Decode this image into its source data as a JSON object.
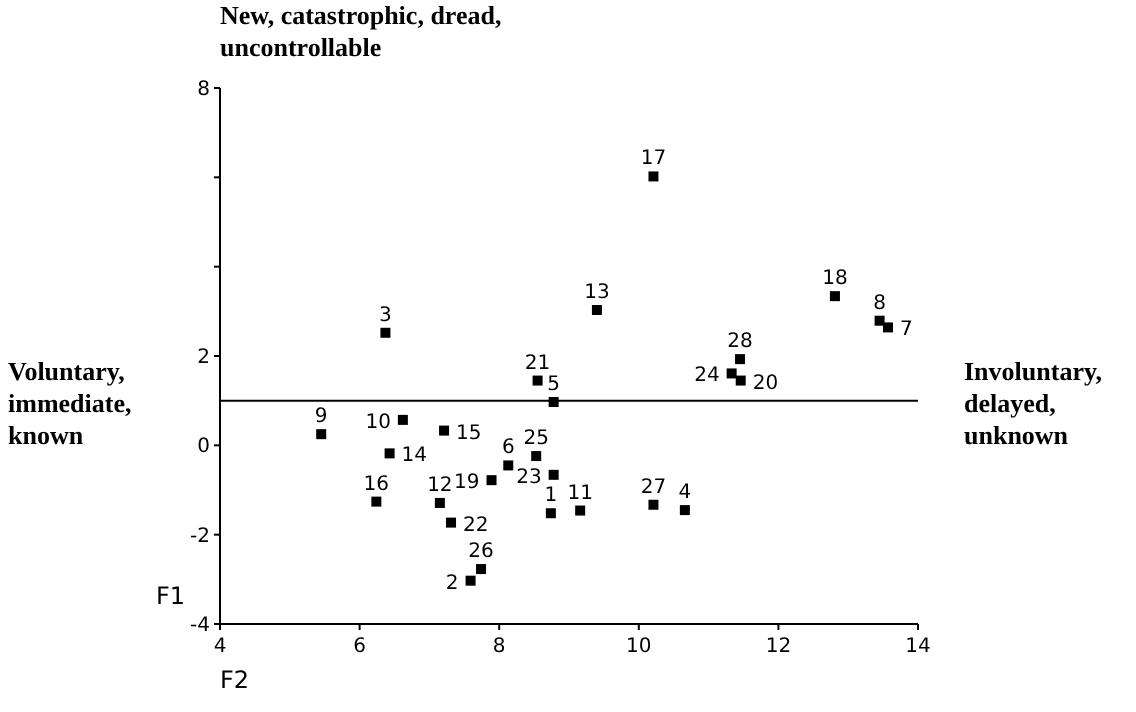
{
  "chart_data": {
    "type": "scatter",
    "xlabel": "F2",
    "ylabel": "F1",
    "x": [
      8.74,
      7.59,
      6.37,
      10.66,
      8.78,
      8.13,
      13.57,
      13.45,
      5.45,
      6.62,
      9.16,
      7.15,
      9.4,
      6.43,
      7.21,
      6.24,
      10.21,
      12.81,
      7.89,
      11.46,
      8.55,
      7.31,
      8.78,
      11.33,
      8.53,
      7.74,
      10.21,
      11.45
    ],
    "series": [
      {
        "color": "#000000",
        "values": [
          -1.52,
          -3.03,
          2.52,
          -1.45,
          0.97,
          -0.45,
          2.64,
          2.79,
          0.25,
          0.57,
          -1.46,
          -1.29,
          3.03,
          -0.18,
          0.33,
          -1.26,
          6.02,
          3.34,
          -0.78,
          1.45,
          1.45,
          -1.73,
          -0.66,
          1.61,
          -0.24,
          -2.77,
          -1.33,
          1.93
        ]
      }
    ],
    "marker": "square",
    "grid": false,
    "xlim": [
      4,
      14
    ],
    "xticks": [
      4,
      6,
      8,
      10,
      12,
      14
    ],
    "ylim": [
      -4,
      8
    ],
    "yticks": [
      -4,
      -2,
      0,
      2,
      {
        "value": 4,
        "label": null
      },
      {
        "value": 6,
        "label": null
      },
      8
    ],
    "ref_lines": [
      {
        "axis": "y",
        "value": 1,
        "color": "#000000",
        "line_style": "solid"
      }
    ],
    "annotations": [
      "New, catastrophic, dread, uncontrollable",
      "Voluntary, immediate, known",
      "Involuntary, delayed, unknown",
      {
        "text": "1",
        "x": 8.74,
        "y": -1.52
      },
      {
        "text": "2",
        "x": 7.59,
        "y": -3.03
      },
      {
        "text": "3",
        "x": 6.37,
        "y": 2.52
      },
      {
        "text": "4",
        "x": 10.66,
        "y": -1.45
      },
      {
        "text": "5",
        "x": 8.78,
        "y": 0.97
      },
      {
        "text": "6",
        "x": 8.13,
        "y": -0.45
      },
      {
        "text": "7",
        "x": 13.57,
        "y": 2.64
      },
      {
        "text": "8",
        "x": 13.45,
        "y": 2.79
      },
      {
        "text": "9",
        "x": 5.45,
        "y": 0.25
      },
      {
        "text": "10",
        "x": 6.62,
        "y": 0.57
      },
      {
        "text": "11",
        "x": 9.16,
        "y": -1.46
      },
      {
        "text": "12",
        "x": 7.15,
        "y": -1.29
      },
      {
        "text": "13",
        "x": 9.4,
        "y": 3.03
      },
      {
        "text": "14",
        "x": 6.43,
        "y": -0.18
      },
      {
        "text": "15",
        "x": 7.21,
        "y": 0.33
      },
      {
        "text": "16",
        "x": 6.24,
        "y": -1.26
      },
      {
        "text": "17",
        "x": 10.21,
        "y": 6.02
      },
      {
        "text": "18",
        "x": 12.81,
        "y": 3.34
      },
      {
        "text": "19",
        "x": 7.89,
        "y": -0.78
      },
      {
        "text": "20",
        "x": 11.46,
        "y": 1.45
      },
      {
        "text": "21",
        "x": 8.55,
        "y": 1.45
      },
      {
        "text": "22",
        "x": 7.31,
        "y": -1.73
      },
      {
        "text": "23",
        "x": 8.78,
        "y": -0.66
      },
      {
        "text": "24",
        "x": 11.33,
        "y": 1.61
      },
      {
        "text": "25",
        "x": 8.53,
        "y": -0.24
      },
      {
        "text": "26",
        "x": 7.74,
        "y": -2.77
      },
      {
        "text": "27",
        "x": 10.21,
        "y": -1.33
      },
      {
        "text": "28",
        "x": 11.45,
        "y": 1.93
      }
    ]
  }
}
